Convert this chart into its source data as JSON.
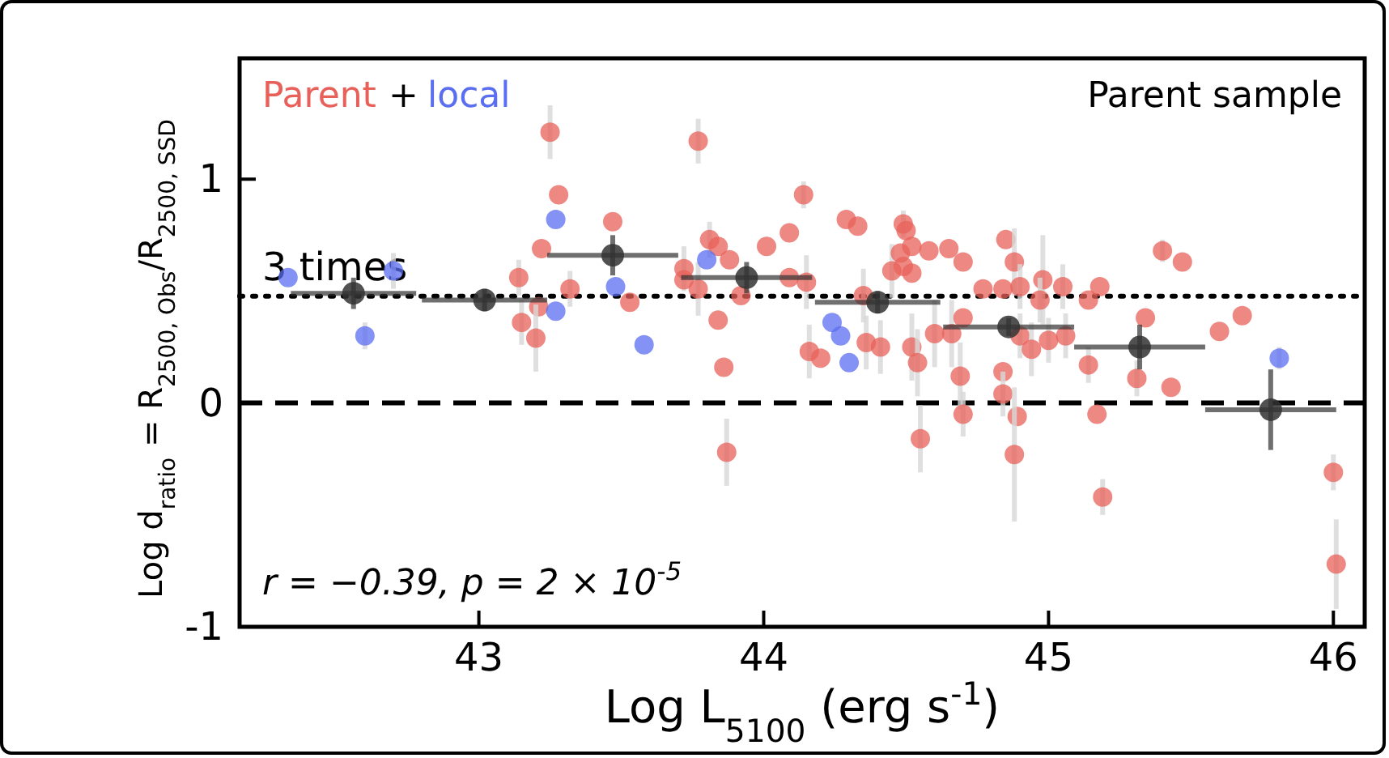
{
  "chart_data": {
    "type": "scatter",
    "title": "Parent sample",
    "xlabel": "Log L$_{5100}$ (erg s$^{-1}$)",
    "ylabel": "Log d$_{ratio}$ = R$_{2500, Obs}$/R$_{2500, SSD}$",
    "xlim": [
      42.16,
      46.11
    ],
    "ylim": [
      -1,
      1.54
    ],
    "xticks": [
      43,
      44,
      45,
      46
    ],
    "yticks": [
      -1,
      0,
      1
    ],
    "grid": false,
    "legend": "top left",
    "marker": "circle",
    "annotations": [
      "+",
      "r = −0.39, p = 2 × 10$^{-5}$"
    ],
    "ref_lines": [
      {
        "axis": "y",
        "value": 0.477,
        "label": "3 times",
        "line_style": "dotted",
        "color": "#000000"
      },
      {
        "axis": "y",
        "value": 0,
        "label": null,
        "line_style": "dashed",
        "color": "#000000"
      }
    ],
    "series": [
      {
        "name": "Parent",
        "color": "#e8605a",
        "x": [
          43.25,
          43.28,
          43.22,
          43.14,
          43.32,
          43.21,
          43.15,
          43.2,
          43.47,
          43.53,
          43.77,
          43.81,
          43.84,
          43.88,
          43.72,
          43.72,
          43.77,
          43.84,
          43.86,
          43.87,
          43.92,
          44.01,
          44.09,
          44.14,
          44.09,
          44.15,
          44.16,
          44.2,
          44.29,
          44.33,
          44.35,
          44.36,
          44.41,
          44.45,
          44.48,
          44.49,
          44.5,
          44.52,
          44.49,
          44.52,
          44.52,
          44.54,
          44.55,
          44.58,
          44.65,
          44.7,
          44.6,
          44.66,
          44.7,
          44.69,
          44.7,
          44.85,
          44.88,
          44.77,
          44.84,
          44.9,
          44.98,
          44.97,
          45.05,
          45.14,
          45.18,
          44.9,
          44.94,
          45.0,
          45.06,
          44.84,
          44.84,
          44.89,
          44.88,
          45.14,
          45.17,
          45.19,
          45.34,
          45.31,
          45.43,
          45.4,
          45.47,
          45.6,
          45.68,
          46.0,
          46.01
        ],
        "values": [
          1.21,
          0.93,
          0.69,
          0.56,
          0.51,
          0.43,
          0.36,
          0.29,
          0.81,
          0.45,
          1.17,
          0.73,
          0.7,
          0.64,
          0.6,
          0.55,
          0.51,
          0.37,
          0.16,
          -0.22,
          0.48,
          0.7,
          0.76,
          0.93,
          0.56,
          0.54,
          0.23,
          0.2,
          0.82,
          0.79,
          0.48,
          0.27,
          0.25,
          0.59,
          0.67,
          0.8,
          0.77,
          0.7,
          0.61,
          0.58,
          0.25,
          0.18,
          -0.16,
          0.68,
          0.69,
          0.63,
          0.31,
          0.31,
          0.38,
          0.12,
          -0.05,
          0.73,
          0.63,
          0.51,
          0.51,
          0.52,
          0.55,
          0.46,
          0.52,
          0.46,
          0.52,
          0.3,
          0.24,
          0.28,
          0.3,
          0.14,
          0.04,
          -0.06,
          -0.23,
          0.17,
          -0.05,
          -0.42,
          0.38,
          0.11,
          0.07,
          0.68,
          0.63,
          0.32,
          0.39,
          -0.31,
          -0.72
        ],
        "errors": [
          0.12,
          null,
          null,
          0.08,
          0.08,
          null,
          0.1,
          0.15,
          null,
          null,
          0.1,
          0.08,
          null,
          null,
          0.1,
          null,
          0.12,
          null,
          null,
          0.15,
          null,
          null,
          null,
          0.06,
          null,
          0.12,
          0.12,
          null,
          null,
          null,
          0.12,
          0.12,
          0.12,
          0.12,
          null,
          0.06,
          null,
          null,
          null,
          null,
          0.15,
          0.15,
          0.15,
          null,
          null,
          null,
          0.15,
          0.15,
          null,
          0.15,
          0.1,
          null,
          0.15,
          null,
          null,
          0.1,
          0.2,
          0.1,
          0.1,
          null,
          null,
          0.1,
          0.12,
          0.1,
          0.1,
          null,
          0.1,
          null,
          0.3,
          0.08,
          null,
          0.08,
          null,
          0.08,
          null,
          0.05,
          null,
          null,
          null,
          0.08,
          0.2
        ]
      },
      {
        "name": "local",
        "color": "#5a6ef0",
        "x": [
          42.33,
          42.6,
          42.7,
          43.27,
          43.27,
          43.48,
          43.58,
          43.8,
          44.24,
          44.27,
          44.3,
          45.81
        ],
        "values": [
          0.56,
          0.3,
          0.59,
          0.82,
          0.41,
          0.52,
          0.26,
          0.64,
          0.36,
          0.3,
          0.18,
          0.2
        ],
        "errors": [
          null,
          0.06,
          0.08,
          null,
          null,
          null,
          null,
          null,
          null,
          null,
          null,
          0.05
        ]
      },
      {
        "color": "#333333",
        "x": [
          42.56,
          43.02,
          43.47,
          43.94,
          44.4,
          44.86,
          45.32,
          45.78
        ],
        "values": [
          0.49,
          0.46,
          0.66,
          0.56,
          0.45,
          0.34,
          0.25,
          -0.03
        ],
        "errors": [
          0.07,
          0.05,
          0.09,
          0.07,
          0.05,
          0.04,
          0.1,
          0.18
        ],
        "xerrors": [
          0.22,
          0.22,
          0.23,
          0.23,
          0.22,
          0.23,
          0.23,
          0.23
        ]
      }
    ]
  }
}
